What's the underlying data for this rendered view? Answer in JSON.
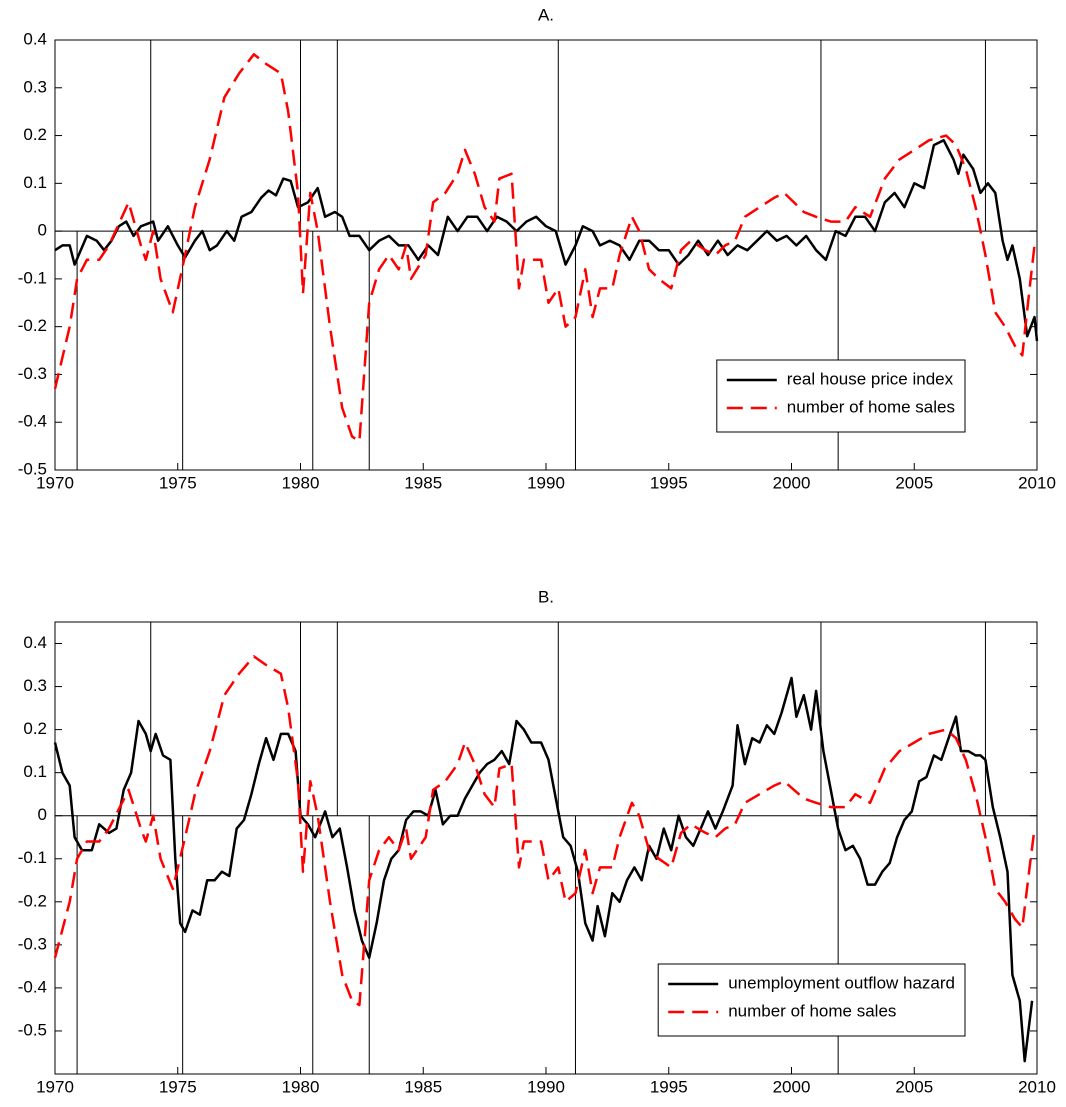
{
  "chart_data": [
    {
      "type": "line",
      "title": "A.",
      "xlim": [
        1970,
        2010
      ],
      "xticks": [
        1970,
        1975,
        1980,
        1985,
        1990,
        1995,
        2000,
        2005,
        2010
      ],
      "ylim": [
        -0.5,
        0.4
      ],
      "yticks": [
        -0.5,
        -0.4,
        -0.3,
        -0.2,
        -0.1,
        0,
        0.1,
        0.2,
        0.3,
        0.4
      ],
      "legend": "lower right",
      "recession_peaks": [
        1973.9,
        1980.0,
        1981.5,
        1990.5,
        2001.2,
        2007.9
      ],
      "recession_troughs": [
        1970.9,
        1975.2,
        1980.5,
        1982.8,
        1991.2,
        2001.9
      ],
      "series": [
        {
          "name": "real house price index",
          "color": "#000000",
          "dash": false,
          "x": [
            1970.0,
            1970.3,
            1970.6,
            1970.8,
            1971.3,
            1971.7,
            1972.0,
            1972.3,
            1972.6,
            1972.9,
            1973.2,
            1973.5,
            1974.0,
            1974.2,
            1974.6,
            1975.0,
            1975.3,
            1975.7,
            1976.0,
            1976.3,
            1976.6,
            1977.0,
            1977.3,
            1977.6,
            1978.0,
            1978.4,
            1978.7,
            1979.0,
            1979.3,
            1979.6,
            1979.9,
            1980.3,
            1980.7,
            1981.0,
            1981.4,
            1981.7,
            1982.0,
            1982.4,
            1982.8,
            1983.2,
            1983.6,
            1984.0,
            1984.4,
            1984.8,
            1985.2,
            1985.6,
            1986.0,
            1986.4,
            1986.8,
            1987.2,
            1987.6,
            1988.0,
            1988.4,
            1988.8,
            1989.2,
            1989.6,
            1990.0,
            1990.4,
            1990.8,
            1991.2,
            1991.5,
            1991.9,
            1992.2,
            1992.6,
            1993.0,
            1993.4,
            1993.8,
            1994.2,
            1994.6,
            1995.0,
            1995.4,
            1995.8,
            1996.2,
            1996.6,
            1997.0,
            1997.4,
            1997.8,
            1998.2,
            1998.6,
            1999.0,
            1999.4,
            1999.8,
            2000.2,
            2000.6,
            2001.0,
            2001.4,
            2001.8,
            2002.2,
            2002.6,
            2003.0,
            2003.4,
            2003.8,
            2004.2,
            2004.6,
            2005.0,
            2005.4,
            2005.8,
            2006.2,
            2006.6,
            2006.8,
            2007.0,
            2007.4,
            2007.7,
            2008.0,
            2008.3,
            2008.6,
            2008.8,
            2009.0,
            2009.3,
            2009.6,
            2009.9,
            2010.0
          ],
          "values": [
            -0.04,
            -0.03,
            -0.03,
            -0.07,
            -0.01,
            -0.02,
            -0.04,
            -0.02,
            0.01,
            0.02,
            -0.01,
            0.01,
            0.02,
            -0.02,
            0.01,
            -0.03,
            -0.055,
            -0.02,
            0.0,
            -0.04,
            -0.03,
            0.0,
            -0.02,
            0.03,
            0.04,
            0.07,
            0.085,
            0.075,
            0.11,
            0.105,
            0.05,
            0.06,
            0.09,
            0.03,
            0.04,
            0.03,
            -0.01,
            -0.01,
            -0.04,
            -0.02,
            -0.01,
            -0.03,
            -0.03,
            -0.06,
            -0.03,
            -0.05,
            0.03,
            0.0,
            0.03,
            0.03,
            0.0,
            0.03,
            0.02,
            0.0,
            0.02,
            0.03,
            0.01,
            0.0,
            -0.07,
            -0.03,
            0.01,
            0.0,
            -0.03,
            -0.02,
            -0.03,
            -0.06,
            -0.02,
            -0.02,
            -0.04,
            -0.04,
            -0.07,
            -0.05,
            -0.02,
            -0.05,
            -0.02,
            -0.05,
            -0.03,
            -0.04,
            -0.02,
            0.0,
            -0.02,
            -0.01,
            -0.03,
            -0.01,
            -0.04,
            -0.06,
            0.0,
            -0.01,
            0.03,
            0.03,
            0.0,
            0.06,
            0.08,
            0.05,
            0.1,
            0.09,
            0.18,
            0.19,
            0.15,
            0.12,
            0.16,
            0.13,
            0.08,
            0.1,
            0.08,
            -0.02,
            -0.06,
            -0.03,
            -0.1,
            -0.22,
            -0.18,
            -0.23
          ]
        },
        {
          "name": "number of home sales",
          "color": "#ff0000",
          "dash": true,
          "x": [
            1970.0,
            1970.6,
            1970.9,
            1971.3,
            1971.8,
            1972.2,
            1973.0,
            1973.5,
            1973.7,
            1974.0,
            1974.3,
            1974.8,
            1975.3,
            1975.7,
            1976.3,
            1976.9,
            1977.5,
            1978.1,
            1978.6,
            1979.2,
            1979.5,
            1979.9,
            1980.1,
            1980.4,
            1980.7,
            1981.2,
            1981.7,
            1982.1,
            1982.4,
            1982.8,
            1983.2,
            1983.6,
            1984.0,
            1984.3,
            1984.5,
            1985.1,
            1985.4,
            1985.9,
            1986.4,
            1986.7,
            1987.1,
            1987.5,
            1987.9,
            1988.1,
            1988.6,
            1988.9,
            1989.1,
            1989.8,
            1990.1,
            1990.5,
            1990.8,
            1991.2,
            1991.6,
            1991.9,
            1992.2,
            1992.7,
            1993.0,
            1993.5,
            1993.8,
            1994.2,
            1994.6,
            1995.1,
            1995.5,
            1995.9,
            1996.5,
            1996.9,
            1997.3,
            1997.7,
            1998.1,
            1998.7,
            1999.3,
            1999.7,
            2000.1,
            2000.5,
            2001.0,
            2001.6,
            2002.2,
            2002.6,
            2003.2,
            2003.8,
            2004.4,
            2005.0,
            2005.6,
            2006.3,
            2006.7,
            2007.1,
            2007.5,
            2007.9,
            2008.3,
            2008.7,
            2009.1,
            2009.4,
            2009.7,
            2009.9
          ],
          "values": [
            -0.33,
            -0.2,
            -0.1,
            -0.06,
            -0.06,
            -0.03,
            0.06,
            -0.03,
            -0.06,
            0.0,
            -0.1,
            -0.17,
            -0.05,
            0.05,
            0.15,
            0.28,
            0.33,
            0.37,
            0.35,
            0.33,
            0.25,
            0.08,
            -0.13,
            0.08,
            0.0,
            -0.2,
            -0.37,
            -0.43,
            -0.44,
            -0.15,
            -0.08,
            -0.05,
            -0.08,
            -0.03,
            -0.1,
            -0.05,
            0.06,
            0.08,
            0.12,
            0.17,
            0.12,
            0.05,
            0.02,
            0.11,
            0.12,
            -0.12,
            -0.06,
            -0.06,
            -0.15,
            -0.12,
            -0.2,
            -0.18,
            -0.08,
            -0.18,
            -0.12,
            -0.12,
            -0.05,
            0.03,
            0.0,
            -0.08,
            -0.1,
            -0.12,
            -0.04,
            -0.02,
            -0.04,
            -0.05,
            -0.03,
            -0.02,
            0.03,
            0.05,
            0.07,
            0.08,
            0.06,
            0.04,
            0.03,
            0.02,
            0.02,
            0.05,
            0.03,
            0.11,
            0.15,
            0.17,
            0.19,
            0.2,
            0.18,
            0.13,
            0.05,
            -0.05,
            -0.17,
            -0.2,
            -0.24,
            -0.26,
            -0.12,
            -0.03
          ]
        }
      ]
    },
    {
      "type": "line",
      "title": "B.",
      "xlim": [
        1970,
        2010
      ],
      "xticks": [
        1970,
        1975,
        1980,
        1985,
        1990,
        1995,
        2000,
        2005,
        2010
      ],
      "ylim": [
        -0.6,
        0.45
      ],
      "yticks": [
        -0.5,
        -0.4,
        -0.3,
        -0.2,
        -0.1,
        0,
        0.1,
        0.2,
        0.3,
        0.4
      ],
      "legend": "lower right",
      "recession_peaks": [
        1973.9,
        1980.0,
        1981.5,
        1990.5,
        2001.2,
        2007.9
      ],
      "recession_troughs": [
        1970.9,
        1975.2,
        1980.5,
        1982.8,
        1991.2,
        2001.9
      ],
      "series": [
        {
          "name": "unemployment outflow hazard",
          "color": "#000000",
          "dash": false,
          "x": [
            1970.0,
            1970.3,
            1970.6,
            1970.8,
            1971.1,
            1971.5,
            1971.8,
            1972.2,
            1972.5,
            1972.8,
            1973.1,
            1973.4,
            1973.7,
            1973.9,
            1974.1,
            1974.4,
            1974.7,
            1974.9,
            1975.1,
            1975.3,
            1975.6,
            1975.9,
            1976.2,
            1976.5,
            1976.8,
            1977.1,
            1977.4,
            1977.7,
            1978.0,
            1978.3,
            1978.6,
            1978.9,
            1979.2,
            1979.5,
            1979.8,
            1980.0,
            1980.3,
            1980.6,
            1981.0,
            1981.3,
            1981.6,
            1981.9,
            1982.2,
            1982.5,
            1982.8,
            1983.1,
            1983.4,
            1983.7,
            1984.0,
            1984.3,
            1984.6,
            1984.9,
            1985.2,
            1985.5,
            1985.8,
            1986.1,
            1986.4,
            1986.7,
            1987.0,
            1987.3,
            1987.6,
            1987.9,
            1988.2,
            1988.5,
            1988.8,
            1989.1,
            1989.4,
            1989.8,
            1990.1,
            1990.4,
            1990.7,
            1991.0,
            1991.3,
            1991.6,
            1991.9,
            1992.1,
            1992.4,
            1992.7,
            1993.0,
            1993.3,
            1993.6,
            1993.9,
            1994.2,
            1994.5,
            1994.8,
            1995.1,
            1995.4,
            1995.7,
            1996.0,
            1996.3,
            1996.6,
            1996.9,
            1997.2,
            1997.6,
            1997.8,
            1998.1,
            1998.4,
            1998.7,
            1999.0,
            1999.3,
            1999.6,
            2000.0,
            2000.2,
            2000.5,
            2000.8,
            2001.0,
            2001.3,
            2001.6,
            2001.9,
            2002.2,
            2002.5,
            2002.8,
            2003.1,
            2003.4,
            2003.7,
            2004.0,
            2004.3,
            2004.6,
            2004.9,
            2005.2,
            2005.5,
            2005.8,
            2006.1,
            2006.4,
            2006.7,
            2006.9,
            2007.2,
            2007.5,
            2007.7,
            2007.9,
            2008.2,
            2008.5,
            2008.8,
            2009.0,
            2009.3,
            2009.5,
            2009.8
          ],
          "values": [
            0.17,
            0.1,
            0.07,
            -0.05,
            -0.08,
            -0.08,
            -0.02,
            -0.04,
            -0.03,
            0.06,
            0.1,
            0.22,
            0.19,
            0.15,
            0.19,
            0.14,
            0.13,
            -0.1,
            -0.25,
            -0.27,
            -0.22,
            -0.23,
            -0.15,
            -0.15,
            -0.13,
            -0.14,
            -0.03,
            -0.01,
            0.05,
            0.12,
            0.18,
            0.13,
            0.19,
            0.19,
            0.15,
            0.0,
            -0.02,
            -0.05,
            0.01,
            -0.05,
            -0.03,
            -0.12,
            -0.22,
            -0.29,
            -0.33,
            -0.25,
            -0.15,
            -0.1,
            -0.08,
            -0.01,
            0.01,
            0.01,
            0.0,
            0.06,
            -0.02,
            0.0,
            0.0,
            0.04,
            0.07,
            0.1,
            0.12,
            0.13,
            0.15,
            0.12,
            0.22,
            0.2,
            0.17,
            0.17,
            0.13,
            0.04,
            -0.05,
            -0.07,
            -0.13,
            -0.25,
            -0.29,
            -0.21,
            -0.28,
            -0.18,
            -0.2,
            -0.15,
            -0.12,
            -0.15,
            -0.07,
            -0.1,
            -0.03,
            -0.08,
            0.0,
            -0.05,
            -0.07,
            -0.03,
            0.01,
            -0.03,
            0.01,
            0.07,
            0.21,
            0.12,
            0.18,
            0.17,
            0.21,
            0.19,
            0.24,
            0.32,
            0.23,
            0.28,
            0.2,
            0.29,
            0.15,
            0.06,
            -0.03,
            -0.08,
            -0.07,
            -0.1,
            -0.16,
            -0.16,
            -0.13,
            -0.11,
            -0.05,
            -0.01,
            0.01,
            0.08,
            0.09,
            0.14,
            0.13,
            0.18,
            0.23,
            0.15,
            0.15,
            0.14,
            0.14,
            0.13,
            0.02,
            -0.05,
            -0.13,
            -0.37,
            -0.43,
            -0.57,
            -0.43
          ]
        },
        {
          "name": "number of home sales",
          "color": "#ff0000",
          "dash": true,
          "x": [
            1970.0,
            1970.6,
            1970.9,
            1971.3,
            1971.8,
            1972.2,
            1973.0,
            1973.5,
            1973.7,
            1974.0,
            1974.3,
            1974.8,
            1975.3,
            1975.7,
            1976.3,
            1976.9,
            1977.5,
            1978.1,
            1978.6,
            1979.2,
            1979.5,
            1979.9,
            1980.1,
            1980.4,
            1980.7,
            1981.2,
            1981.7,
            1982.1,
            1982.4,
            1982.8,
            1983.2,
            1983.6,
            1984.0,
            1984.3,
            1984.5,
            1985.1,
            1985.4,
            1985.9,
            1986.4,
            1986.7,
            1987.1,
            1987.5,
            1987.9,
            1988.1,
            1988.6,
            1988.9,
            1989.1,
            1989.8,
            1990.1,
            1990.5,
            1990.8,
            1991.2,
            1991.6,
            1991.9,
            1992.2,
            1992.7,
            1993.0,
            1993.5,
            1993.8,
            1994.2,
            1994.6,
            1995.1,
            1995.5,
            1995.9,
            1996.5,
            1996.9,
            1997.3,
            1997.7,
            1998.1,
            1998.7,
            1999.3,
            1999.7,
            2000.1,
            2000.5,
            2001.0,
            2001.6,
            2002.2,
            2002.6,
            2003.2,
            2003.8,
            2004.4,
            2005.0,
            2005.6,
            2006.3,
            2006.7,
            2007.1,
            2007.5,
            2007.9,
            2008.3,
            2008.7,
            2009.1,
            2009.4,
            2009.7,
            2009.9
          ],
          "values": [
            -0.33,
            -0.2,
            -0.1,
            -0.06,
            -0.06,
            -0.03,
            0.06,
            -0.03,
            -0.06,
            0.0,
            -0.1,
            -0.17,
            -0.05,
            0.05,
            0.15,
            0.28,
            0.33,
            0.37,
            0.35,
            0.33,
            0.25,
            0.08,
            -0.13,
            0.08,
            0.0,
            -0.2,
            -0.37,
            -0.43,
            -0.44,
            -0.15,
            -0.08,
            -0.05,
            -0.08,
            -0.03,
            -0.1,
            -0.05,
            0.06,
            0.08,
            0.12,
            0.17,
            0.12,
            0.05,
            0.02,
            0.11,
            0.12,
            -0.12,
            -0.06,
            -0.06,
            -0.15,
            -0.12,
            -0.2,
            -0.18,
            -0.08,
            -0.18,
            -0.12,
            -0.12,
            -0.05,
            0.03,
            0.0,
            -0.08,
            -0.1,
            -0.12,
            -0.04,
            -0.02,
            -0.04,
            -0.05,
            -0.03,
            -0.02,
            0.03,
            0.05,
            0.07,
            0.08,
            0.06,
            0.04,
            0.03,
            0.02,
            0.02,
            0.05,
            0.03,
            0.11,
            0.15,
            0.17,
            0.19,
            0.2,
            0.18,
            0.13,
            0.05,
            -0.05,
            -0.17,
            -0.2,
            -0.24,
            -0.26,
            -0.12,
            -0.03
          ]
        }
      ]
    }
  ]
}
